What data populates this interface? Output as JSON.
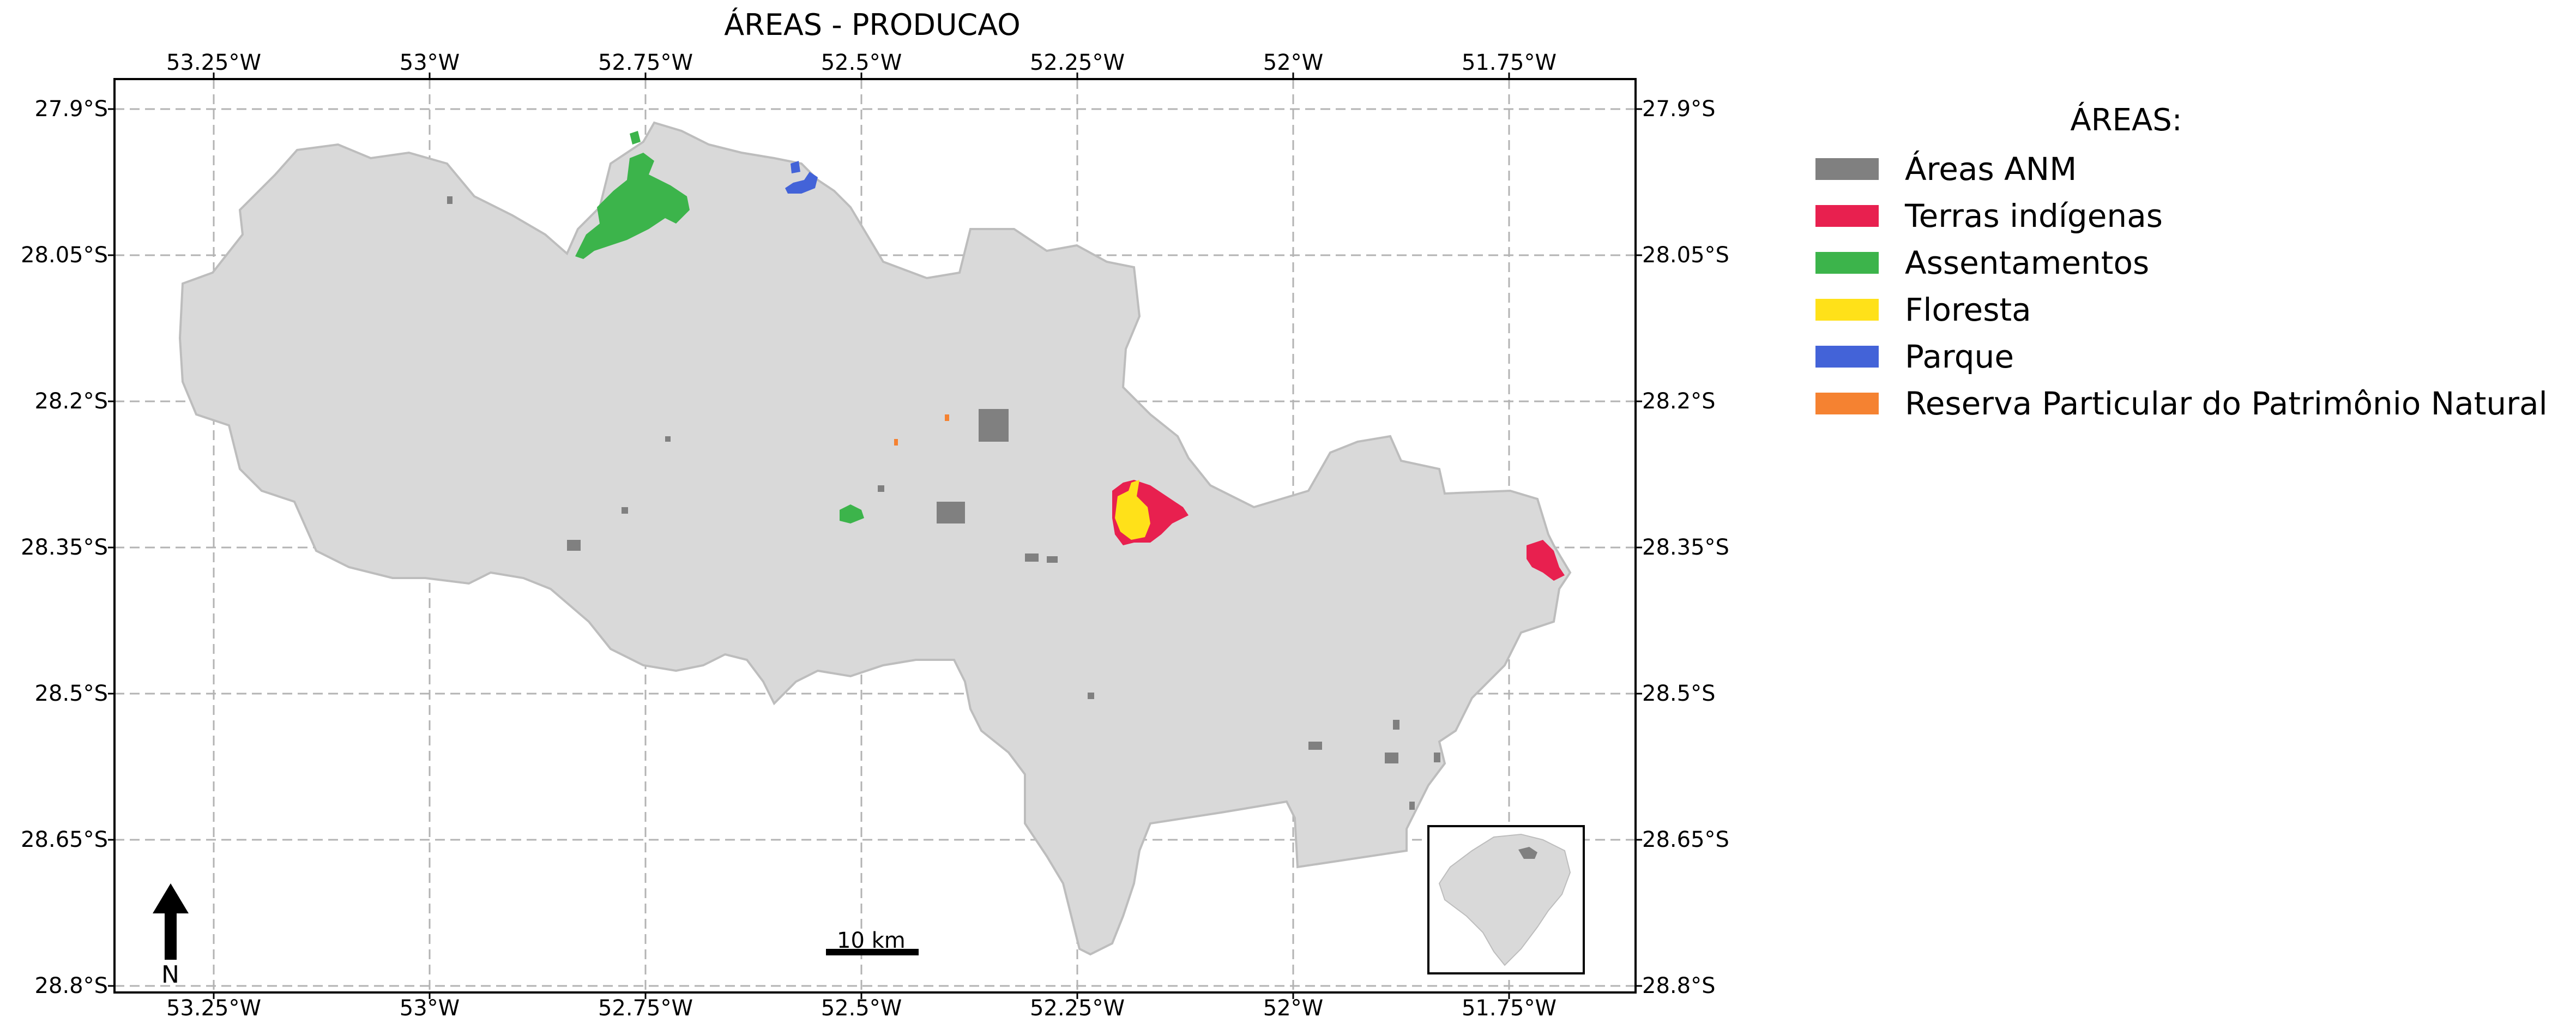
{
  "map": {
    "title": "ÁREAS - PRODUCAO",
    "x_ticks": [
      {
        "lon": -53.25,
        "label": "53.25°W"
      },
      {
        "lon": -53.0,
        "label": "53°W"
      },
      {
        "lon": -52.75,
        "label": "52.75°W"
      },
      {
        "lon": -52.5,
        "label": "52.5°W"
      },
      {
        "lon": -52.25,
        "label": "52.25°W"
      },
      {
        "lon": -52.0,
        "label": "52°W"
      },
      {
        "lon": -51.75,
        "label": "51.75°W"
      }
    ],
    "y_ticks": [
      {
        "lat": -27.9,
        "label": "27.9°S"
      },
      {
        "lat": -28.05,
        "label": "28.05°S"
      },
      {
        "lat": -28.2,
        "label": "28.2°S"
      },
      {
        "lat": -28.35,
        "label": "28.35°S"
      },
      {
        "lat": -28.5,
        "label": "28.5°S"
      },
      {
        "lat": -28.65,
        "label": "28.65°S"
      },
      {
        "lat": -28.8,
        "label": "28.8°S"
      }
    ],
    "grid": true,
    "north_arrow_label": "N",
    "scale_bar_label": "10 km",
    "inset_map": "Rio Grande do Sul locator",
    "colors": {
      "region_fill": "#d9d9d9",
      "region_edge": "#bdbdbd",
      "grid": "#b3b3b3"
    }
  },
  "legend": {
    "title": "ÁREAS:",
    "items": [
      {
        "label": "Áreas ANM",
        "color": "#808080"
      },
      {
        "label": "Terras indígenas",
        "color": "#e8204f"
      },
      {
        "label": "Assentamentos",
        "color": "#3cb44b"
      },
      {
        "label": "Floresta",
        "color": "#ffe119"
      },
      {
        "label": "Parque",
        "color": "#4363d8"
      },
      {
        "label": "Reserva Particular do Patrimônio Natural",
        "color": "#f58231"
      }
    ]
  }
}
